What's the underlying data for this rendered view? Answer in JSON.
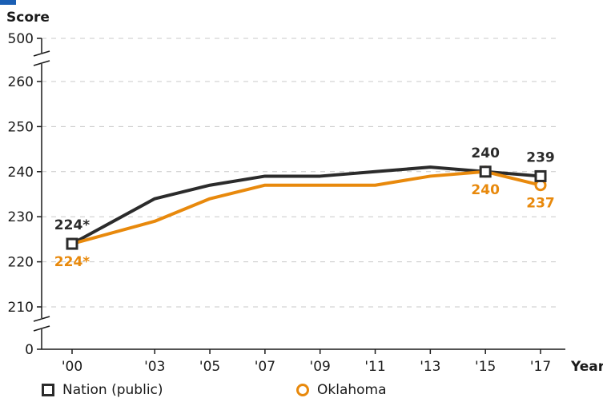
{
  "chart_data": {
    "type": "line",
    "ylabel": "Score",
    "xlabel": "Year",
    "categories": [
      "'00",
      "'03",
      "'05",
      "'07",
      "'09",
      "'11",
      "'13",
      "'15",
      "'17"
    ],
    "years": [
      2000,
      2003,
      2005,
      2007,
      2009,
      2011,
      2013,
      2015,
      2017
    ],
    "y_ticks": [
      "500",
      "260",
      "250",
      "240",
      "230",
      "220",
      "210",
      "0"
    ],
    "ylim_display": [
      210,
      260
    ],
    "axis_breaks": [
      "between 260 and 500",
      "between 0 and 210"
    ],
    "grid": "dashed horizontal",
    "series": [
      {
        "name": "Nation (public)",
        "color": "#2b2b2b",
        "marker": "square",
        "values": [
          224,
          234,
          237,
          239,
          239,
          240,
          241,
          240,
          239
        ]
      },
      {
        "name": "Oklahoma",
        "color": "#e8890c",
        "marker": "circle",
        "values": [
          224,
          229,
          234,
          237,
          237,
          237,
          239,
          240,
          237
        ]
      }
    ],
    "data_labels": {
      "nation": [
        {
          "year": 2000,
          "text": "224*"
        },
        {
          "year": 2015,
          "text": "240"
        },
        {
          "year": 2017,
          "text": "239"
        }
      ],
      "oklahoma": [
        {
          "year": 2000,
          "text": "224*"
        },
        {
          "year": 2015,
          "text": "240"
        },
        {
          "year": 2017,
          "text": "237"
        }
      ]
    },
    "legend_position": "bottom"
  },
  "legend": {
    "nation_label": "Nation (public)",
    "oklahoma_label": "Oklahoma"
  },
  "colors": {
    "accent": "#1a5fb4",
    "nation": "#2b2b2b",
    "oklahoma": "#e8890c",
    "grid": "#c8c8c8"
  }
}
